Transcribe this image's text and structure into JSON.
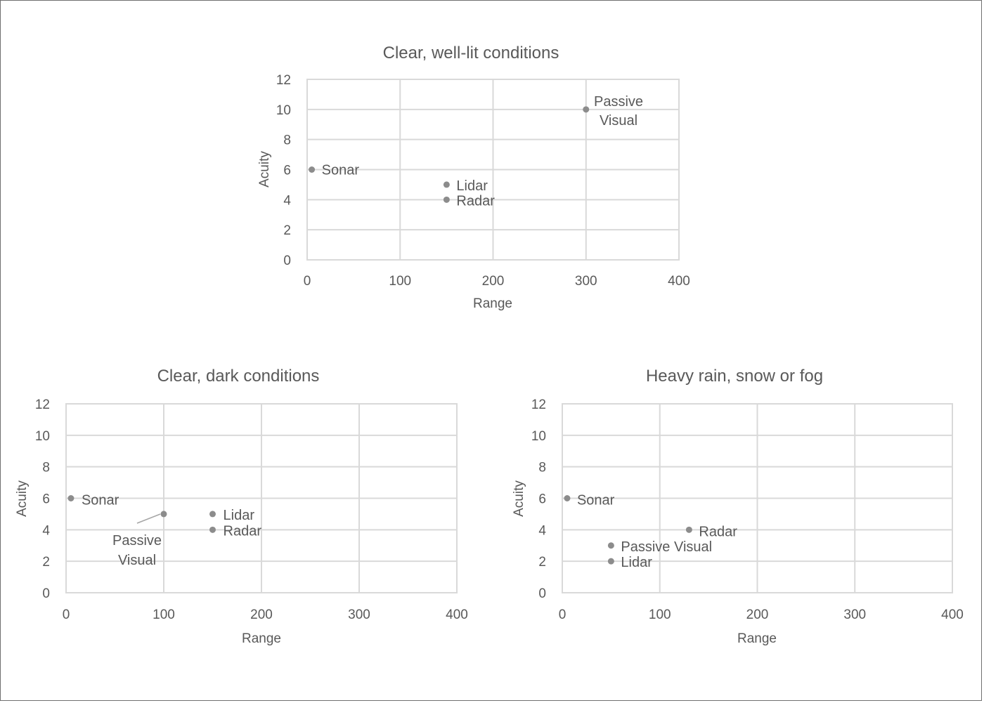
{
  "chart_data": [
    {
      "type": "scatter",
      "title": "Clear, well-lit conditions",
      "xlabel": "Range",
      "ylabel": "Acuity",
      "xlim": [
        0,
        400
      ],
      "ylim": [
        0,
        12
      ],
      "xticks": [
        "0",
        "100",
        "200",
        "300",
        "400"
      ],
      "yticks": [
        "0",
        "2",
        "4",
        "6",
        "8",
        "10",
        "12"
      ],
      "grid": true,
      "points": [
        {
          "label": "Sonar",
          "x": 5,
          "y": 6
        },
        {
          "label": "Lidar",
          "x": 150,
          "y": 5
        },
        {
          "label": "Radar",
          "x": 150,
          "y": 4
        },
        {
          "label": "Passive Visual",
          "x": 300,
          "y": 10
        }
      ]
    },
    {
      "type": "scatter",
      "title": "Clear, dark conditions",
      "xlabel": "Range",
      "ylabel": "Acuity",
      "xlim": [
        0,
        400
      ],
      "ylim": [
        0,
        12
      ],
      "xticks": [
        "0",
        "100",
        "200",
        "300",
        "400"
      ],
      "yticks": [
        "0",
        "2",
        "4",
        "6",
        "8",
        "10",
        "12"
      ],
      "grid": true,
      "points": [
        {
          "label": "Sonar",
          "x": 5,
          "y": 6
        },
        {
          "label": "Passive Visual",
          "x": 100,
          "y": 5
        },
        {
          "label": "Lidar",
          "x": 150,
          "y": 5
        },
        {
          "label": "Radar",
          "x": 150,
          "y": 4
        }
      ]
    },
    {
      "type": "scatter",
      "title": "Heavy rain, snow or fog",
      "xlabel": "Range",
      "ylabel": "Acuity",
      "xlim": [
        0,
        400
      ],
      "ylim": [
        0,
        12
      ],
      "xticks": [
        "0",
        "100",
        "200",
        "300",
        "400"
      ],
      "yticks": [
        "0",
        "2",
        "4",
        "6",
        "8",
        "10",
        "12"
      ],
      "grid": true,
      "points": [
        {
          "label": "Sonar",
          "x": 5,
          "y": 6
        },
        {
          "label": "Radar",
          "x": 130,
          "y": 4
        },
        {
          "label": "Passive Visual",
          "x": 50,
          "y": 3
        },
        {
          "label": "Lidar",
          "x": 50,
          "y": 2
        }
      ]
    }
  ]
}
